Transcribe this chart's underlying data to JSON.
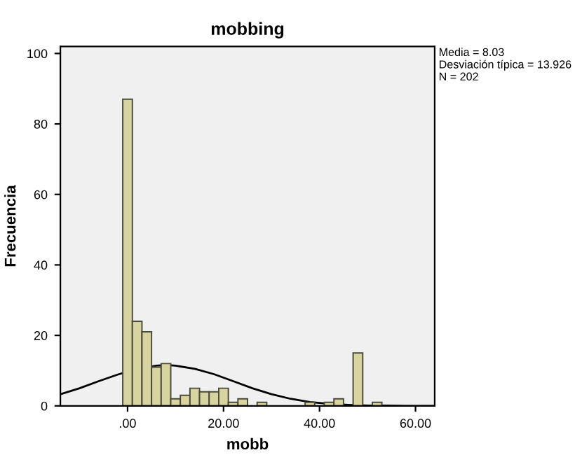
{
  "chart_data": {
    "type": "histogram",
    "title": "mobbing",
    "xlabel": "mobb",
    "ylabel": "Frecuencia",
    "annotations": [
      "Media = 8.03\nDesviación típica = 13.926\nN = 202"
    ],
    "series": [
      {
        "color": "#d8d4a0",
        "bins": [
          -1,
          1,
          3,
          5,
          7,
          9,
          11,
          13,
          15,
          17,
          19,
          21,
          23,
          25,
          27,
          29,
          31,
          33,
          35,
          37,
          39,
          41,
          43,
          45,
          47,
          49,
          51,
          53
        ],
        "values": [
          87,
          24,
          21,
          11,
          12,
          2,
          3,
          5,
          4,
          4,
          5,
          1,
          2,
          0,
          1,
          0,
          0,
          0,
          0,
          1,
          0,
          1,
          2,
          0,
          15,
          0,
          1
        ]
      },
      {
        "type": "line",
        "color": "#000000",
        "x": [
          -14,
          -10,
          -6,
          -2,
          2,
          6,
          8,
          10,
          14,
          18,
          22,
          26,
          30,
          34,
          38,
          42,
          46,
          50,
          54,
          58,
          62,
          64
        ],
        "values": [
          3.3,
          5.0,
          7.0,
          8.9,
          10.5,
          11.4,
          11.6,
          11.4,
          10.5,
          9.0,
          7.0,
          5.0,
          3.3,
          2.0,
          1.1,
          0.6,
          0.3,
          0.1,
          0.1,
          0.0,
          0.0,
          0.0
        ]
      }
    ],
    "xlim": [
      -14,
      64
    ],
    "ylim": [
      0,
      102
    ],
    "xticks": [
      {
        "value": 0,
        "label": ".00"
      },
      {
        "value": 20,
        "label": "20.00"
      },
      {
        "value": 40,
        "label": "40.00"
      },
      {
        "value": 60,
        "label": "60.00"
      }
    ],
    "yticks": [
      0,
      20,
      40,
      60,
      80,
      100
    ],
    "grid": false,
    "legend": false
  }
}
